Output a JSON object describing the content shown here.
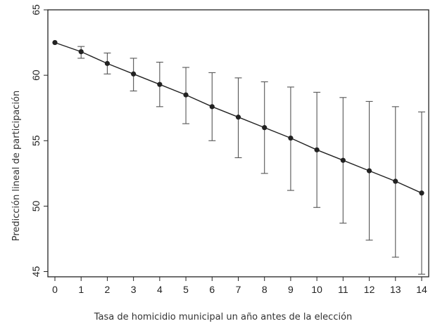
{
  "chart_data": {
    "type": "line",
    "title": "",
    "xlabel": "Tasa de homicidio municipal un año antes de la elección",
    "ylabel": "Predicción lineal de participación",
    "x": [
      0,
      1,
      2,
      3,
      4,
      5,
      6,
      7,
      8,
      9,
      10,
      11,
      12,
      13,
      14
    ],
    "x_ticks": [
      "0",
      "1",
      "2",
      "3",
      "4",
      "5",
      "6",
      "7",
      "8",
      "9",
      "10",
      "11",
      "12",
      "13",
      "14"
    ],
    "y_ticks": [
      "45",
      "50",
      "55",
      "60",
      "65"
    ],
    "xlim": [
      0,
      14
    ],
    "ylim": [
      44.6,
      65
    ],
    "series": [
      {
        "values": [
          62.5,
          61.8,
          60.9,
          60.1,
          59.3,
          58.5,
          57.6,
          56.8,
          56.0,
          55.2,
          54.3,
          53.5,
          52.7,
          51.9,
          51.0
        ],
        "lower": [
          62.5,
          61.3,
          60.1,
          58.8,
          57.6,
          56.3,
          55.0,
          53.7,
          52.5,
          51.2,
          49.9,
          48.7,
          47.4,
          46.1,
          44.8
        ],
        "upper": [
          62.5,
          62.2,
          61.7,
          61.3,
          61.0,
          60.6,
          60.2,
          59.8,
          59.5,
          59.1,
          58.7,
          58.3,
          58.0,
          57.6,
          57.2
        ]
      }
    ],
    "grid": false,
    "legend": "none",
    "colors": {
      "line": "#222222",
      "frame": "#222222"
    }
  }
}
